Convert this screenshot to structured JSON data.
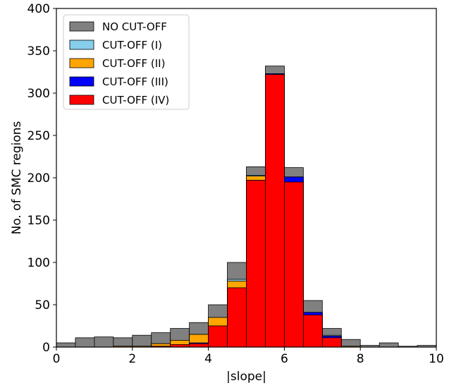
{
  "chart_data": {
    "type": "bar",
    "stacked_overlay": true,
    "xlabel": "|slope|",
    "ylabel": "No. of SMC regions",
    "xlim": [
      0,
      10
    ],
    "ylim": [
      0,
      400
    ],
    "x_ticks": [
      "0",
      "2",
      "4",
      "6",
      "8",
      "10"
    ],
    "y_ticks": [
      "0",
      "50",
      "100",
      "150",
      "200",
      "250",
      "300",
      "350",
      "400"
    ],
    "bin_edges": [
      0,
      0.5,
      1,
      1.5,
      2,
      2.5,
      3,
      3.5,
      4,
      4.5,
      5,
      5.5,
      6,
      6.5,
      7,
      7.5,
      8,
      8.5,
      9,
      9.5,
      10
    ],
    "legend_position": "top-left",
    "series": [
      {
        "name": "NO CUT-OFF",
        "color": "#808080",
        "values": [
          5,
          11,
          12,
          11,
          14,
          17,
          22,
          29,
          50,
          100,
          213,
          332,
          212,
          55,
          22,
          9,
          2,
          5,
          1,
          2
        ]
      },
      {
        "name": "CUT-OFF (I)",
        "color": "#87ceeb",
        "values": [
          0,
          0,
          0,
          1,
          1,
          4,
          8,
          15,
          35,
          80,
          203,
          323,
          201,
          41,
          14,
          1,
          0,
          0,
          0,
          0
        ]
      },
      {
        "name": "CUT-OFF (II)",
        "color": "#ffa500",
        "values": [
          0,
          0,
          0,
          1,
          1,
          4,
          8,
          15,
          35,
          78,
          202,
          323,
          200,
          40,
          13,
          1,
          0,
          0,
          0,
          0
        ]
      },
      {
        "name": "CUT-OFF (III)",
        "color": "#0000ff",
        "values": [
          0,
          0,
          0,
          0,
          0,
          1,
          3,
          5,
          25,
          70,
          197,
          323,
          201,
          41,
          13,
          0,
          0,
          0,
          0,
          0
        ]
      },
      {
        "name": "CUT-OFF (IV)",
        "color": "#ff0000",
        "values": [
          0,
          0,
          0,
          0,
          0,
          1,
          3,
          4,
          25,
          70,
          197,
          322,
          195,
          38,
          11,
          0,
          0,
          0,
          0,
          0
        ]
      }
    ]
  }
}
